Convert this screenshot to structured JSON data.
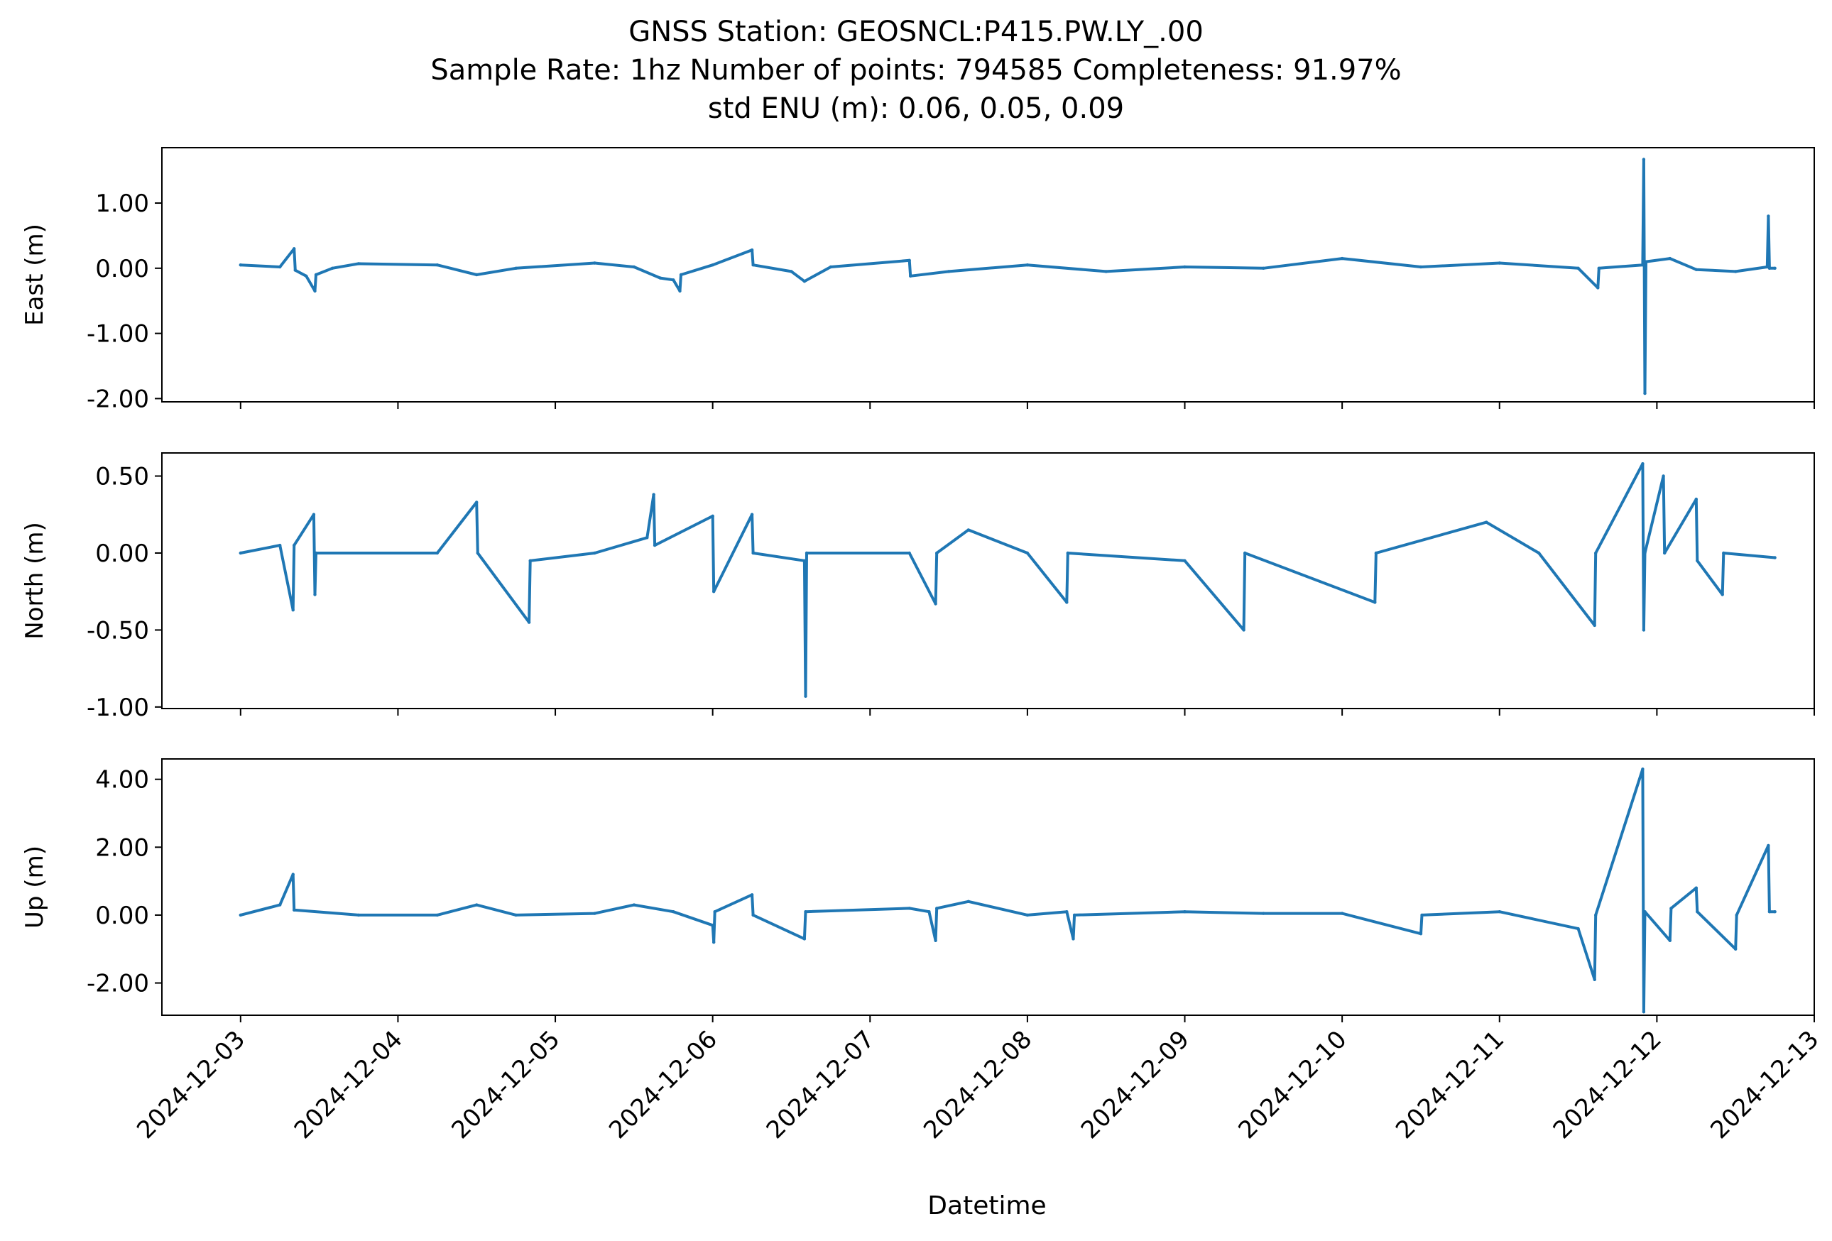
{
  "figure": {
    "title_lines": [
      "GNSS Station: GEOSNCL:P415.PW.LY_.00",
      "Sample Rate: 1hz   Number of points: 794585    Completeness:  91.97%",
      "std ENU (m):  0.06, 0.05, 0.09"
    ],
    "xlabel": "Datetime",
    "line_color": "#1f77b4"
  },
  "chart_data": {
    "type": "line",
    "x_tick_labels": [
      "2024-12-03",
      "2024-12-04",
      "2024-12-05",
      "2024-12-06",
      "2024-12-07",
      "2024-12-08",
      "2024-12-09",
      "2024-12-10",
      "2024-12-11",
      "2024-12-12",
      "2024-12-13"
    ],
    "x_range": [
      "2024-12-02 12:00",
      "2024-12-13 00:00"
    ],
    "grid": false,
    "legend": "none",
    "series": [
      {
        "name": "East (m)",
        "ylabel": "East (m)",
        "ylim": [
          -2.05,
          1.85
        ],
        "yticks": [
          1.0,
          0.0,
          -1.0,
          -2.0
        ],
        "ytick_labels": [
          "1.00",
          "0.00",
          "-1.00",
          "-2.00"
        ],
        "points": [
          [
            "2024-12-03 00:00",
            0.05
          ],
          [
            "2024-12-03 06:00",
            0.02
          ],
          [
            "2024-12-03 08:10",
            0.3
          ],
          [
            "2024-12-03 08:20",
            -0.03
          ],
          [
            "2024-12-03 10:00",
            -0.12
          ],
          [
            "2024-12-03 11:20",
            -0.35
          ],
          [
            "2024-12-03 11:30",
            -0.1
          ],
          [
            "2024-12-03 14:00",
            0.0
          ],
          [
            "2024-12-03 18:00",
            0.07
          ],
          [
            "2024-12-04 06:00",
            0.05
          ],
          [
            "2024-12-04 12:00",
            -0.1
          ],
          [
            "2024-12-04 18:00",
            0.0
          ],
          [
            "2024-12-05 06:00",
            0.08
          ],
          [
            "2024-12-05 12:00",
            0.02
          ],
          [
            "2024-12-05 16:00",
            -0.15
          ],
          [
            "2024-12-05 18:00",
            -0.18
          ],
          [
            "2024-12-05 19:00",
            -0.35
          ],
          [
            "2024-12-05 19:10",
            -0.1
          ],
          [
            "2024-12-06 00:00",
            0.05
          ],
          [
            "2024-12-06 06:00",
            0.28
          ],
          [
            "2024-12-06 06:10",
            0.05
          ],
          [
            "2024-12-06 12:00",
            -0.05
          ],
          [
            "2024-12-06 14:00",
            -0.2
          ],
          [
            "2024-12-06 18:00",
            0.02
          ],
          [
            "2024-12-07 06:00",
            0.12
          ],
          [
            "2024-12-07 06:10",
            -0.12
          ],
          [
            "2024-12-07 12:00",
            -0.05
          ],
          [
            "2024-12-08 00:00",
            0.05
          ],
          [
            "2024-12-08 12:00",
            -0.05
          ],
          [
            "2024-12-09 00:00",
            0.02
          ],
          [
            "2024-12-09 12:00",
            0.0
          ],
          [
            "2024-12-10 00:00",
            0.15
          ],
          [
            "2024-12-10 12:00",
            0.02
          ],
          [
            "2024-12-11 00:00",
            0.08
          ],
          [
            "2024-12-11 12:00",
            0.0
          ],
          [
            "2024-12-11 15:00",
            -0.3
          ],
          [
            "2024-12-11 15:10",
            0.0
          ],
          [
            "2024-12-11 21:50",
            0.05
          ],
          [
            "2024-12-11 22:00",
            1.67
          ],
          [
            "2024-12-11 22:10",
            -1.92
          ],
          [
            "2024-12-11 22:20",
            0.1
          ],
          [
            "2024-12-12 02:00",
            0.15
          ],
          [
            "2024-12-12 06:00",
            -0.02
          ],
          [
            "2024-12-12 12:00",
            -0.05
          ],
          [
            "2024-12-12 16:50",
            0.02
          ],
          [
            "2024-12-12 17:00",
            0.8
          ],
          [
            "2024-12-12 17:10",
            0.0
          ],
          [
            "2024-12-12 18:00",
            0.0
          ]
        ]
      },
      {
        "name": "North (m)",
        "ylabel": "North (m)",
        "ylim": [
          -1.01,
          0.65
        ],
        "yticks": [
          0.5,
          0.0,
          -0.5,
          -1.0
        ],
        "ytick_labels": [
          "0.50",
          "0.00",
          "-0.50",
          "-1.00"
        ],
        "points": [
          [
            "2024-12-03 00:00",
            0.0
          ],
          [
            "2024-12-03 06:00",
            0.05
          ],
          [
            "2024-12-03 08:00",
            -0.37
          ],
          [
            "2024-12-03 08:10",
            0.05
          ],
          [
            "2024-12-03 11:10",
            0.25
          ],
          [
            "2024-12-03 11:20",
            -0.27
          ],
          [
            "2024-12-03 11:30",
            0.0
          ],
          [
            "2024-12-04 06:00",
            0.0
          ],
          [
            "2024-12-04 12:00",
            0.33
          ],
          [
            "2024-12-04 12:10",
            0.0
          ],
          [
            "2024-12-04 20:00",
            -0.45
          ],
          [
            "2024-12-04 20:10",
            -0.05
          ],
          [
            "2024-12-05 06:00",
            0.0
          ],
          [
            "2024-12-05 14:00",
            0.1
          ],
          [
            "2024-12-05 15:00",
            0.38
          ],
          [
            "2024-12-05 15:10",
            0.05
          ],
          [
            "2024-12-06 00:00",
            0.24
          ],
          [
            "2024-12-06 00:10",
            -0.25
          ],
          [
            "2024-12-06 06:00",
            0.25
          ],
          [
            "2024-12-06 06:10",
            0.0
          ],
          [
            "2024-12-06 14:00",
            -0.05
          ],
          [
            "2024-12-06 14:10",
            -0.93
          ],
          [
            "2024-12-06 14:20",
            0.0
          ],
          [
            "2024-12-07 06:00",
            0.0
          ],
          [
            "2024-12-07 10:00",
            -0.33
          ],
          [
            "2024-12-07 10:10",
            0.0
          ],
          [
            "2024-12-07 15:00",
            0.15
          ],
          [
            "2024-12-08 00:00",
            0.0
          ],
          [
            "2024-12-08 06:00",
            -0.32
          ],
          [
            "2024-12-08 06:10",
            0.0
          ],
          [
            "2024-12-09 00:00",
            -0.05
          ],
          [
            "2024-12-09 09:00",
            -0.5
          ],
          [
            "2024-12-09 09:10",
            0.0
          ],
          [
            "2024-12-10 05:00",
            -0.32
          ],
          [
            "2024-12-10 05:10",
            0.0
          ],
          [
            "2024-12-10 22:00",
            0.2
          ],
          [
            "2024-12-11 06:00",
            0.0
          ],
          [
            "2024-12-11 14:30",
            -0.47
          ],
          [
            "2024-12-11 14:40",
            0.0
          ],
          [
            "2024-12-11 21:50",
            0.58
          ],
          [
            "2024-12-11 22:00",
            -0.5
          ],
          [
            "2024-12-11 22:10",
            0.0
          ],
          [
            "2024-12-12 01:00",
            0.5
          ],
          [
            "2024-12-12 01:10",
            0.0
          ],
          [
            "2024-12-12 06:00",
            0.35
          ],
          [
            "2024-12-12 06:10",
            -0.05
          ],
          [
            "2024-12-12 10:00",
            -0.27
          ],
          [
            "2024-12-12 10:10",
            0.0
          ],
          [
            "2024-12-12 18:00",
            -0.03
          ]
        ]
      },
      {
        "name": "Up (m)",
        "ylabel": "Up (m)",
        "ylim": [
          -2.95,
          4.6
        ],
        "yticks": [
          4.0,
          2.0,
          0.0,
          -2.0
        ],
        "ytick_labels": [
          "4.00",
          "2.00",
          "0.00",
          "-2.00"
        ],
        "points": [
          [
            "2024-12-03 00:00",
            0.0
          ],
          [
            "2024-12-03 06:00",
            0.3
          ],
          [
            "2024-12-03 08:00",
            1.2
          ],
          [
            "2024-12-03 08:10",
            0.15
          ],
          [
            "2024-12-03 18:00",
            0.0
          ],
          [
            "2024-12-04 06:00",
            0.0
          ],
          [
            "2024-12-04 12:00",
            0.3
          ],
          [
            "2024-12-04 18:00",
            0.0
          ],
          [
            "2024-12-05 06:00",
            0.05
          ],
          [
            "2024-12-05 12:00",
            0.3
          ],
          [
            "2024-12-05 18:00",
            0.1
          ],
          [
            "2024-12-06 00:00",
            -0.3
          ],
          [
            "2024-12-06 00:10",
            -0.8
          ],
          [
            "2024-12-06 00:20",
            0.1
          ],
          [
            "2024-12-06 06:00",
            0.6
          ],
          [
            "2024-12-06 06:10",
            0.0
          ],
          [
            "2024-12-06 14:00",
            -0.7
          ],
          [
            "2024-12-06 14:10",
            0.1
          ],
          [
            "2024-12-07 06:00",
            0.2
          ],
          [
            "2024-12-07 09:00",
            0.1
          ],
          [
            "2024-12-07 10:00",
            -0.75
          ],
          [
            "2024-12-07 10:10",
            0.2
          ],
          [
            "2024-12-07 15:00",
            0.4
          ],
          [
            "2024-12-08 00:00",
            0.0
          ],
          [
            "2024-12-08 06:00",
            0.1
          ],
          [
            "2024-12-08 07:00",
            -0.7
          ],
          [
            "2024-12-08 07:10",
            0.0
          ],
          [
            "2024-12-09 00:00",
            0.1
          ],
          [
            "2024-12-09 12:00",
            0.05
          ],
          [
            "2024-12-10 00:00",
            0.05
          ],
          [
            "2024-12-10 12:00",
            -0.55
          ],
          [
            "2024-12-10 12:10",
            0.0
          ],
          [
            "2024-12-11 00:00",
            0.1
          ],
          [
            "2024-12-11 12:00",
            -0.4
          ],
          [
            "2024-12-11 14:30",
            -1.9
          ],
          [
            "2024-12-11 14:40",
            0.0
          ],
          [
            "2024-12-11 21:50",
            4.3
          ],
          [
            "2024-12-11 22:00",
            -2.85
          ],
          [
            "2024-12-11 22:10",
            0.1
          ],
          [
            "2024-12-12 02:00",
            -0.75
          ],
          [
            "2024-12-12 02:10",
            0.2
          ],
          [
            "2024-12-12 06:00",
            0.8
          ],
          [
            "2024-12-12 06:10",
            0.1
          ],
          [
            "2024-12-12 12:00",
            -1.0
          ],
          [
            "2024-12-12 12:10",
            0.0
          ],
          [
            "2024-12-12 17:00",
            2.05
          ],
          [
            "2024-12-12 17:10",
            0.1
          ],
          [
            "2024-12-12 18:00",
            0.1
          ]
        ]
      }
    ]
  }
}
